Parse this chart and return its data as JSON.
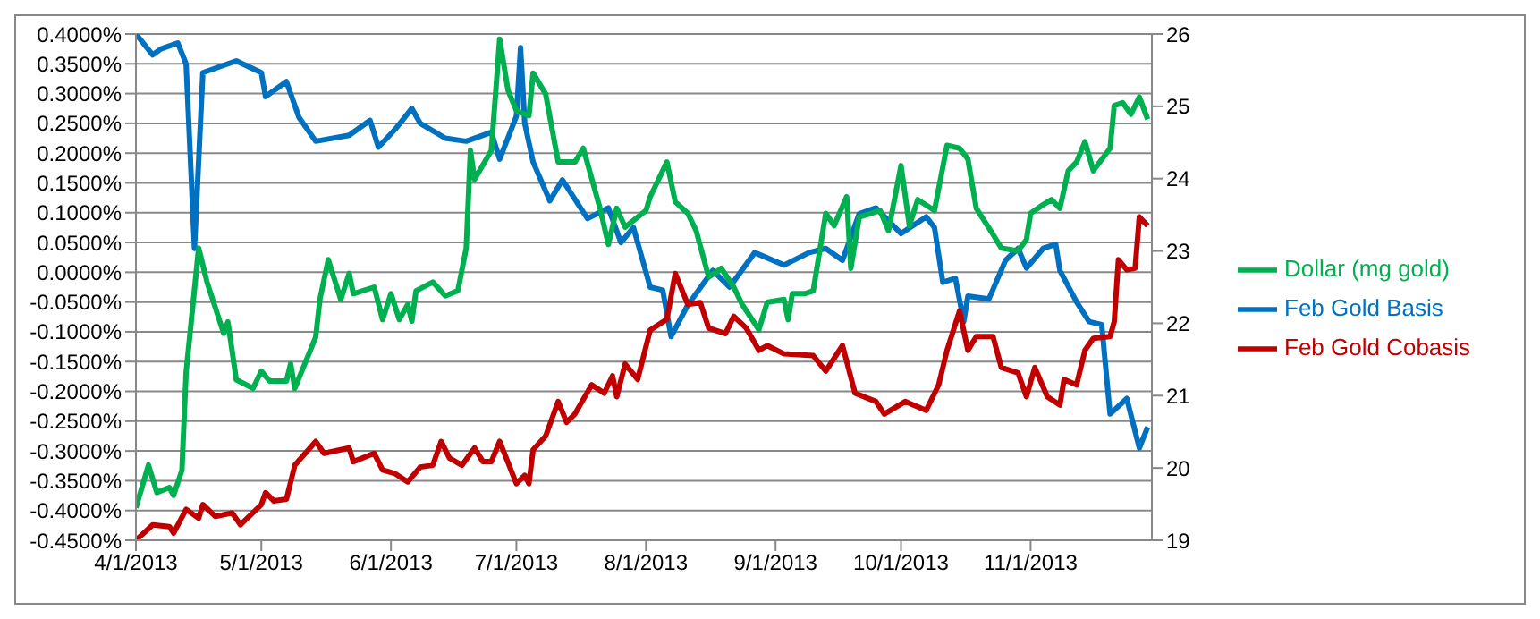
{
  "chart_data": {
    "type": "line",
    "grid": "y",
    "legend": "right",
    "marker": "none",
    "line_style": "solid",
    "xlim": [
      "2013-04-01",
      "2013-11-30"
    ],
    "xticks": [
      {
        "value": "2013-04-01",
        "label": "4/1/2013"
      },
      {
        "value": "2013-05-01",
        "label": "5/1/2013"
      },
      {
        "value": "2013-06-01",
        "label": "6/1/2013"
      },
      {
        "value": "2013-07-01",
        "label": "7/1/2013"
      },
      {
        "value": "2013-08-01",
        "label": "8/1/2013"
      },
      {
        "value": "2013-09-01",
        "label": "9/1/2013"
      },
      {
        "value": "2013-10-01",
        "label": "10/1/2013"
      },
      {
        "value": "2013-11-01",
        "label": "11/1/2013"
      }
    ],
    "ylim": [
      -0.45,
      0.4
    ],
    "yticks": [
      {
        "value": 0.4,
        "label": "0.4000%"
      },
      {
        "value": 0.35,
        "label": "0.3500%"
      },
      {
        "value": 0.3,
        "label": "0.3000%"
      },
      {
        "value": 0.25,
        "label": "0.2500%"
      },
      {
        "value": 0.2,
        "label": "0.2000%"
      },
      {
        "value": 0.15,
        "label": "0.1500%"
      },
      {
        "value": 0.1,
        "label": "0.1000%"
      },
      {
        "value": 0.05,
        "label": "0.0500%"
      },
      {
        "value": 0,
        "label": "0.0000%"
      },
      {
        "value": -0.05,
        "label": "-0.0500%"
      },
      {
        "value": -0.1,
        "label": "-0.1000%"
      },
      {
        "value": -0.15,
        "label": "-0.1500%"
      },
      {
        "value": -0.2,
        "label": "-0.2000%"
      },
      {
        "value": -0.25,
        "label": "-0.2500%"
      },
      {
        "value": -0.3,
        "label": "-0.3000%"
      },
      {
        "value": -0.35,
        "label": "-0.3500%"
      },
      {
        "value": -0.4,
        "label": "-0.4000%"
      },
      {
        "value": -0.45,
        "label": "-0.4500%"
      }
    ],
    "y2lim": [
      19,
      26
    ],
    "y2ticks": [
      19,
      20,
      21,
      22,
      23,
      24,
      25,
      26
    ],
    "series": [
      {
        "name": "Feb Gold Basis",
        "color": "#0070c0",
        "x": [
          "2013-04-01",
          "2013-04-05",
          "2013-04-07",
          "2013-04-11",
          "2013-04-13",
          "2013-04-15",
          "2013-04-17",
          "2013-04-25",
          "2013-05-01",
          "2013-05-02",
          "2013-05-07",
          "2013-05-10",
          "2013-05-14",
          "2013-05-22",
          "2013-05-27",
          "2013-05-29",
          "2013-06-02",
          "2013-06-06",
          "2013-06-08",
          "2013-06-14",
          "2013-06-19",
          "2013-06-25",
          "2013-06-27",
          "2013-07-01",
          "2013-07-02",
          "2013-07-03",
          "2013-07-05",
          "2013-07-09",
          "2013-07-12",
          "2013-07-18",
          "2013-07-23",
          "2013-07-26",
          "2013-07-29",
          "2013-08-02",
          "2013-08-05",
          "2013-08-07",
          "2013-08-11",
          "2013-08-17",
          "2013-08-21",
          "2013-08-27",
          "2013-09-03",
          "2013-09-09",
          "2013-09-13",
          "2013-09-17",
          "2013-09-21",
          "2013-09-25",
          "2013-10-01",
          "2013-10-07",
          "2013-10-09",
          "2013-10-11",
          "2013-10-14",
          "2013-10-16",
          "2013-10-17",
          "2013-10-22",
          "2013-10-26",
          "2013-10-29",
          "2013-10-31",
          "2013-11-04",
          "2013-11-07",
          "2013-11-08",
          "2013-11-12",
          "2013-11-15",
          "2013-11-18",
          "2013-11-20",
          "2013-11-24",
          "2013-11-27",
          "2013-11-29"
        ],
        "values": [
          0.4,
          0.365,
          0.375,
          0.385,
          0.35,
          0.04,
          0.335,
          0.355,
          0.335,
          0.295,
          0.32,
          0.26,
          0.22,
          0.23,
          0.255,
          0.21,
          0.24,
          0.275,
          0.25,
          0.225,
          0.22,
          0.235,
          0.19,
          0.262,
          0.377,
          0.25,
          0.185,
          0.12,
          0.155,
          0.09,
          0.108,
          0.05,
          0.075,
          -0.025,
          -0.03,
          -0.108,
          -0.055,
          0.003,
          -0.025,
          0.033,
          0.012,
          0.033,
          0.04,
          0.02,
          0.098,
          0.108,
          0.065,
          0.093,
          0.075,
          -0.017,
          -0.01,
          -0.083,
          -0.04,
          -0.045,
          0.02,
          0.04,
          0.007,
          0.04,
          0.047,
          0.003,
          -0.05,
          -0.083,
          -0.088,
          -0.238,
          -0.212,
          -0.295,
          -0.26
        ]
      },
      {
        "name": "Feb Gold Cobasis",
        "color": "#c00000",
        "x": [
          "2013-04-01",
          "2013-04-05",
          "2013-04-09",
          "2013-04-10",
          "2013-04-13",
          "2013-04-16",
          "2013-04-17",
          "2013-04-20",
          "2013-04-24",
          "2013-04-26",
          "2013-05-01",
          "2013-05-02",
          "2013-05-04",
          "2013-05-07",
          "2013-05-09",
          "2013-05-14",
          "2013-05-16",
          "2013-05-22",
          "2013-05-23",
          "2013-05-28",
          "2013-05-30",
          "2013-06-02",
          "2013-06-05",
          "2013-06-08",
          "2013-06-11",
          "2013-06-13",
          "2013-06-15",
          "2013-06-18",
          "2013-06-21",
          "2013-06-23",
          "2013-06-25",
          "2013-06-27",
          "2013-07-01",
          "2013-07-03",
          "2013-07-04",
          "2013-07-05",
          "2013-07-08",
          "2013-07-11",
          "2013-07-13",
          "2013-07-15",
          "2013-07-19",
          "2013-07-22",
          "2013-07-24",
          "2013-07-25",
          "2013-07-27",
          "2013-07-30",
          "2013-08-02",
          "2013-08-06",
          "2013-08-08",
          "2013-08-11",
          "2013-08-14",
          "2013-08-16",
          "2013-08-20",
          "2013-08-22",
          "2013-08-25",
          "2013-08-28",
          "2013-08-30",
          "2013-09-03",
          "2013-09-10",
          "2013-09-13",
          "2013-09-17",
          "2013-09-20",
          "2013-09-25",
          "2013-09-27",
          "2013-10-02",
          "2013-10-07",
          "2013-10-10",
          "2013-10-12",
          "2013-10-15",
          "2013-10-17",
          "2013-10-19",
          "2013-10-23",
          "2013-10-25",
          "2013-10-29",
          "2013-10-31",
          "2013-11-02",
          "2013-11-05",
          "2013-11-08",
          "2013-11-09",
          "2013-11-12",
          "2013-11-14",
          "2013-11-16",
          "2013-11-20",
          "2013-11-21",
          "2013-11-22",
          "2013-11-24",
          "2013-11-26",
          "2013-11-27",
          "2013-11-29"
        ],
        "values": [
          -0.45,
          -0.424,
          -0.427,
          -0.438,
          -0.398,
          -0.413,
          -0.39,
          -0.41,
          -0.404,
          -0.424,
          -0.39,
          -0.37,
          -0.384,
          -0.381,
          -0.324,
          -0.284,
          -0.304,
          -0.295,
          -0.318,
          -0.304,
          -0.332,
          -0.338,
          -0.352,
          -0.327,
          -0.324,
          -0.284,
          -0.312,
          -0.324,
          -0.295,
          -0.318,
          -0.318,
          -0.284,
          -0.355,
          -0.341,
          -0.355,
          -0.298,
          -0.275,
          -0.217,
          -0.252,
          -0.238,
          -0.189,
          -0.203,
          -0.174,
          -0.209,
          -0.154,
          -0.18,
          -0.097,
          -0.079,
          -0.002,
          -0.054,
          -0.051,
          -0.094,
          -0.103,
          -0.074,
          -0.094,
          -0.131,
          -0.123,
          -0.137,
          -0.14,
          -0.166,
          -0.123,
          -0.203,
          -0.217,
          -0.238,
          -0.217,
          -0.232,
          -0.189,
          -0.131,
          -0.065,
          -0.131,
          -0.108,
          -0.108,
          -0.16,
          -0.169,
          -0.209,
          -0.16,
          -0.209,
          -0.223,
          -0.18,
          -0.189,
          -0.131,
          -0.111,
          -0.108,
          -0.083,
          0.021,
          0.004,
          0.007,
          0.093,
          0.078
        ]
      },
      {
        "name": "Dollar (mg gold)",
        "color": "#00b050",
        "axis": "y2",
        "x": [
          "2013-04-01",
          "2013-04-04",
          "2013-04-06",
          "2013-04-09",
          "2013-04-10",
          "2013-04-12",
          "2013-04-13",
          "2013-04-16",
          "2013-04-18",
          "2013-04-22",
          "2013-04-23",
          "2013-04-25",
          "2013-04-29",
          "2013-05-01",
          "2013-05-03",
          "2013-05-07",
          "2013-05-08",
          "2013-05-09",
          "2013-05-14",
          "2013-05-15",
          "2013-05-17",
          "2013-05-20",
          "2013-05-22",
          "2013-05-23",
          "2013-05-28",
          "2013-05-30",
          "2013-06-01",
          "2013-06-03",
          "2013-06-05",
          "2013-06-06",
          "2013-06-07",
          "2013-06-11",
          "2013-06-14",
          "2013-06-17",
          "2013-06-19",
          "2013-06-20",
          "2013-06-21",
          "2013-06-25",
          "2013-06-27",
          "2013-06-29",
          "2013-07-01",
          "2013-07-04",
          "2013-07-05",
          "2013-07-08",
          "2013-07-11",
          "2013-07-15",
          "2013-07-17",
          "2013-07-21",
          "2013-07-23",
          "2013-07-25",
          "2013-07-27",
          "2013-08-01",
          "2013-08-02",
          "2013-08-06",
          "2013-08-08",
          "2013-08-11",
          "2013-08-13",
          "2013-08-16",
          "2013-08-19",
          "2013-08-22",
          "2013-08-24",
          "2013-08-28",
          "2013-08-30",
          "2013-09-03",
          "2013-09-04",
          "2013-09-05",
          "2013-09-08",
          "2013-09-10",
          "2013-09-13",
          "2013-09-15",
          "2013-09-18",
          "2013-09-19",
          "2013-09-21",
          "2013-09-26",
          "2013-09-28",
          "2013-10-01",
          "2013-10-03",
          "2013-10-05",
          "2013-10-09",
          "2013-10-12",
          "2013-10-15",
          "2013-10-17",
          "2013-10-19",
          "2013-10-23",
          "2013-10-25",
          "2013-10-29",
          "2013-10-31",
          "2013-11-01",
          "2013-11-04",
          "2013-11-06",
          "2013-11-08",
          "2013-11-10",
          "2013-11-12",
          "2013-11-14",
          "2013-11-16",
          "2013-11-20",
          "2013-11-21",
          "2013-11-23",
          "2013-11-25",
          "2013-11-27",
          "2013-11-29"
        ],
        "values": [
          19.45,
          20.04,
          19.66,
          19.73,
          19.62,
          19.97,
          21.32,
          23.04,
          22.57,
          21.86,
          22.02,
          21.22,
          21.1,
          21.34,
          21.2,
          21.2,
          21.44,
          21.1,
          21.81,
          22.33,
          22.88,
          22.33,
          22.69,
          22.41,
          22.5,
          22.05,
          22.41,
          22.05,
          22.26,
          22.03,
          22.45,
          22.57,
          22.38,
          22.45,
          23.04,
          24.39,
          23.99,
          24.39,
          25.93,
          25.22,
          24.94,
          24.87,
          25.46,
          25.17,
          24.23,
          24.23,
          24.42,
          23.59,
          23.09,
          23.59,
          23.33,
          23.56,
          23.75,
          24.23,
          23.68,
          23.52,
          23.28,
          22.64,
          22.76,
          22.5,
          22.26,
          21.91,
          22.29,
          22.33,
          22.05,
          22.41,
          22.41,
          22.45,
          23.52,
          23.35,
          23.75,
          22.76,
          23.47,
          23.56,
          23.28,
          24.18,
          23.35,
          23.71,
          23.56,
          24.46,
          24.42,
          24.27,
          23.59,
          23.23,
          23.04,
          23.0,
          23.16,
          23.52,
          23.64,
          23.71,
          23.59,
          24.11,
          24.23,
          24.51,
          24.11,
          24.42,
          25.01,
          25.05,
          24.89,
          25.13,
          24.82
        ]
      }
    ]
  }
}
